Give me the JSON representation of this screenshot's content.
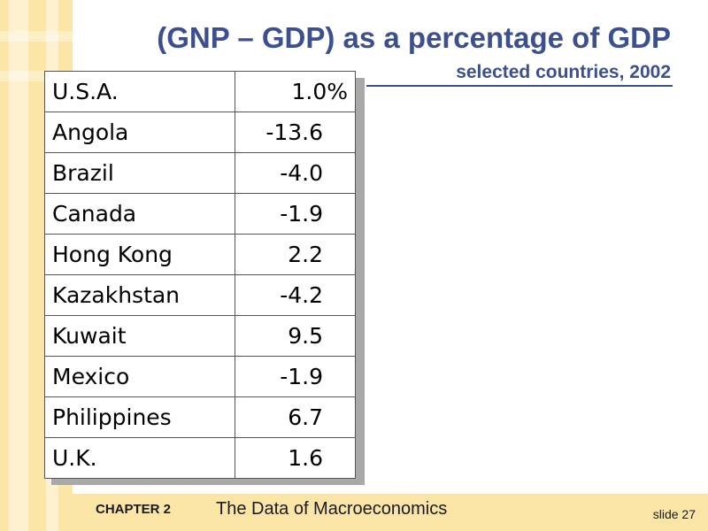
{
  "slide": {
    "title": "(GNP – GDP) as a percentage of GDP",
    "subtitle": "selected countries, 2002"
  },
  "table": {
    "rows": [
      {
        "country": "U.S.A.",
        "value": "1.0%"
      },
      {
        "country": "Angola",
        "value": "-13.6"
      },
      {
        "country": "Brazil",
        "value": "-4.0"
      },
      {
        "country": "Canada",
        "value": "-1.9"
      },
      {
        "country": "Hong Kong",
        "value": "2.2"
      },
      {
        "country": "Kazakhstan",
        "value": "-4.2"
      },
      {
        "country": "Kuwait",
        "value": "9.5"
      },
      {
        "country": "Mexico",
        "value": "-1.9"
      },
      {
        "country": "Philippines",
        "value": "6.7"
      },
      {
        "country": "U.K.",
        "value": "1.6"
      }
    ]
  },
  "footer": {
    "chapter": "CHAPTER 2",
    "chapter_title": "The Data of Macroeconomics",
    "slide_number": "slide 27"
  },
  "colors": {
    "title": "#3c4f8f",
    "stripe": "#fbe6a8"
  }
}
